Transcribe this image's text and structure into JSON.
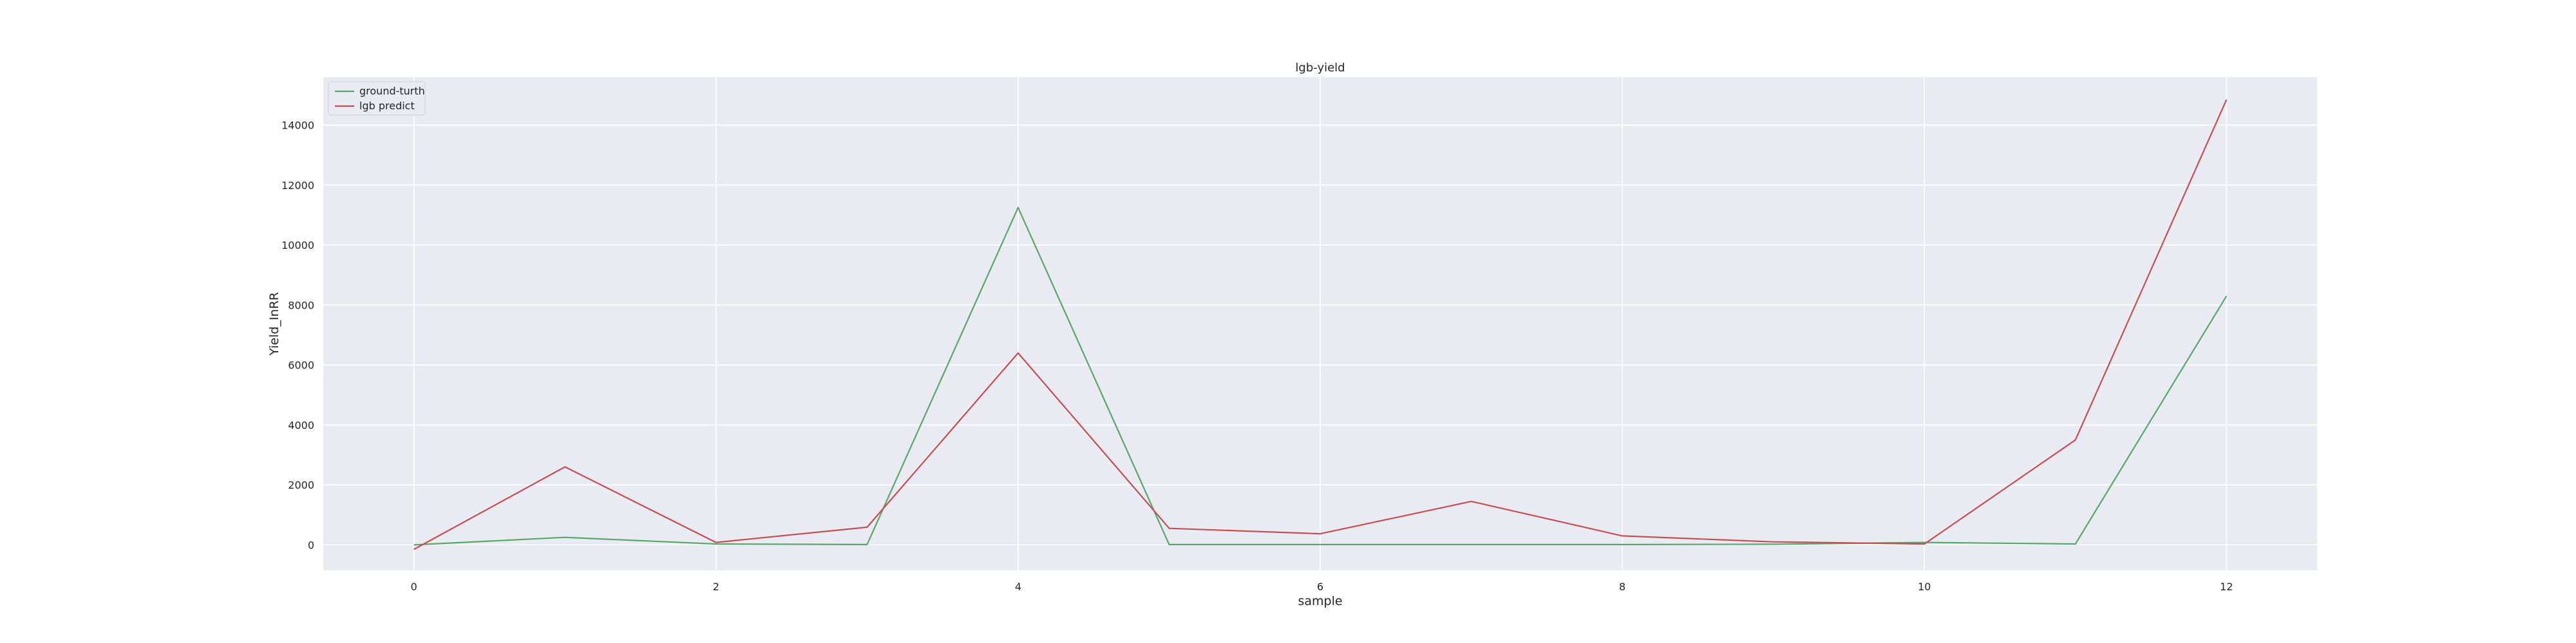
{
  "chart_data": {
    "type": "line",
    "title": "lgb-yield",
    "xlabel": "sample",
    "ylabel": "Yield_InRR",
    "x": [
      0,
      1,
      2,
      3,
      4,
      5,
      6,
      7,
      8,
      9,
      10,
      11,
      12
    ],
    "series": [
      {
        "name": "ground-turth",
        "color": "#55a868",
        "values": [
          0,
          250,
          30,
          10,
          11250,
          10,
          10,
          10,
          10,
          20,
          80,
          30,
          8300
        ]
      },
      {
        "name": "lgb predict",
        "color": "#c44e52",
        "values": [
          -150,
          2600,
          80,
          590,
          6400,
          550,
          370,
          1450,
          300,
          100,
          30,
          3500,
          14850
        ]
      }
    ],
    "xlim": [
      -0.6,
      12.6
    ],
    "ylim": [
      -850,
      15600
    ],
    "xticks": [
      0,
      2,
      4,
      6,
      8,
      10,
      12
    ],
    "yticks": [
      0,
      2000,
      4000,
      6000,
      8000,
      10000,
      12000,
      14000
    ],
    "grid": true,
    "legend_position": "top-left",
    "background": "#eaeaf2",
    "grid_color": "#ffffff"
  }
}
